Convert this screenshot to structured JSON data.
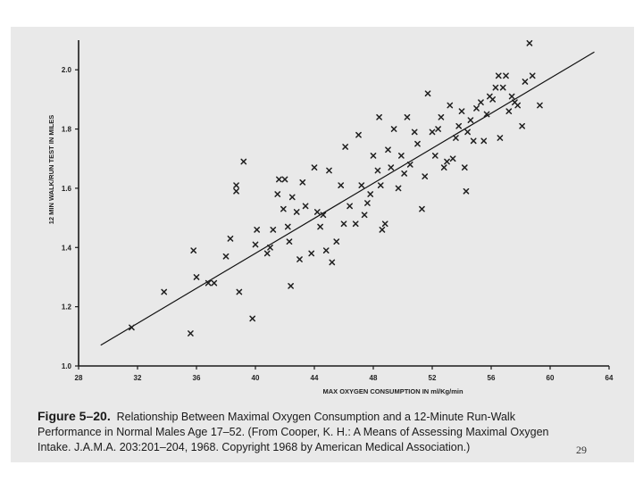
{
  "chart_data": {
    "type": "scatter",
    "title": "",
    "xlabel": "MAX OXYGEN CONSUMPTION IN ml/Kg/min",
    "ylabel": "12 MIN WALK/RUN TEST IN MILES",
    "xlim": [
      28,
      64
    ],
    "ylim": [
      1.0,
      2.1
    ],
    "x_ticks": [
      "28",
      "32",
      "36",
      "40",
      "44",
      "48",
      "52",
      "56",
      "60",
      "64"
    ],
    "y_ticks": [
      "1.0",
      "1.2",
      "1.4",
      "1.6",
      "1.8",
      "2.0"
    ],
    "grid": false,
    "marker": "x",
    "points": [
      [
        31.6,
        1.13
      ],
      [
        33.8,
        1.25
      ],
      [
        35.6,
        1.11
      ],
      [
        35.8,
        1.39
      ],
      [
        36.0,
        1.3
      ],
      [
        36.8,
        1.28
      ],
      [
        37.2,
        1.28
      ],
      [
        38.0,
        1.37
      ],
      [
        38.3,
        1.43
      ],
      [
        38.7,
        1.59
      ],
      [
        38.7,
        1.61
      ],
      [
        38.9,
        1.25
      ],
      [
        39.2,
        1.69
      ],
      [
        39.8,
        1.16
      ],
      [
        40.0,
        1.41
      ],
      [
        40.1,
        1.46
      ],
      [
        40.8,
        1.38
      ],
      [
        41.0,
        1.4
      ],
      [
        41.2,
        1.46
      ],
      [
        41.5,
        1.58
      ],
      [
        41.6,
        1.63
      ],
      [
        41.9,
        1.53
      ],
      [
        42.0,
        1.63
      ],
      [
        42.2,
        1.47
      ],
      [
        42.3,
        1.42
      ],
      [
        42.4,
        1.27
      ],
      [
        42.5,
        1.57
      ],
      [
        42.8,
        1.52
      ],
      [
        43.0,
        1.36
      ],
      [
        43.2,
        1.62
      ],
      [
        43.4,
        1.54
      ],
      [
        43.8,
        1.38
      ],
      [
        44.0,
        1.67
      ],
      [
        44.2,
        1.52
      ],
      [
        44.4,
        1.47
      ],
      [
        44.6,
        1.51
      ],
      [
        44.8,
        1.39
      ],
      [
        45.0,
        1.66
      ],
      [
        45.2,
        1.35
      ],
      [
        45.5,
        1.42
      ],
      [
        45.8,
        1.61
      ],
      [
        46.0,
        1.48
      ],
      [
        46.1,
        1.74
      ],
      [
        46.4,
        1.54
      ],
      [
        46.8,
        1.48
      ],
      [
        47.0,
        1.78
      ],
      [
        47.2,
        1.61
      ],
      [
        47.4,
        1.51
      ],
      [
        47.6,
        1.55
      ],
      [
        47.8,
        1.58
      ],
      [
        48.0,
        1.71
      ],
      [
        48.3,
        1.66
      ],
      [
        48.4,
        1.84
      ],
      [
        48.5,
        1.61
      ],
      [
        48.6,
        1.46
      ],
      [
        48.8,
        1.48
      ],
      [
        49.0,
        1.73
      ],
      [
        49.2,
        1.67
      ],
      [
        49.4,
        1.8
      ],
      [
        49.7,
        1.6
      ],
      [
        49.9,
        1.71
      ],
      [
        50.1,
        1.65
      ],
      [
        50.3,
        1.84
      ],
      [
        50.5,
        1.68
      ],
      [
        50.8,
        1.79
      ],
      [
        51.0,
        1.75
      ],
      [
        51.3,
        1.53
      ],
      [
        51.5,
        1.64
      ],
      [
        51.7,
        1.92
      ],
      [
        52.0,
        1.79
      ],
      [
        52.2,
        1.71
      ],
      [
        52.4,
        1.8
      ],
      [
        52.6,
        1.84
      ],
      [
        52.8,
        1.67
      ],
      [
        53.0,
        1.69
      ],
      [
        53.2,
        1.88
      ],
      [
        53.4,
        1.7
      ],
      [
        53.6,
        1.77
      ],
      [
        53.8,
        1.81
      ],
      [
        54.0,
        1.86
      ],
      [
        54.2,
        1.67
      ],
      [
        54.4,
        1.79
      ],
      [
        54.6,
        1.83
      ],
      [
        54.8,
        1.76
      ],
      [
        55.0,
        1.87
      ],
      [
        55.3,
        1.89
      ],
      [
        55.5,
        1.76
      ],
      [
        55.7,
        1.85
      ],
      [
        55.9,
        1.91
      ],
      [
        56.1,
        1.9
      ],
      [
        56.3,
        1.94
      ],
      [
        56.5,
        1.98
      ],
      [
        56.6,
        1.77
      ],
      [
        56.8,
        1.94
      ],
      [
        57.0,
        1.98
      ],
      [
        57.2,
        1.86
      ],
      [
        57.4,
        1.91
      ],
      [
        57.6,
        1.89
      ],
      [
        57.8,
        1.88
      ],
      [
        58.1,
        1.81
      ],
      [
        58.3,
        1.96
      ],
      [
        58.6,
        2.09
      ],
      [
        58.8,
        1.98
      ],
      [
        59.3,
        1.88
      ],
      [
        54.3,
        1.59
      ]
    ],
    "trendline": {
      "x": [
        29.5,
        63.0
      ],
      "y": [
        1.07,
        2.06
      ]
    }
  },
  "caption": {
    "figure_label": "Figure 5–20.",
    "line1_rest": "Relationship Between Maximal Oxygen Consumption and a 12-Minute Run-Walk",
    "line2": "Performance in Normal Males Age 17–52. (From Cooper, K. H.: A Means of Assessing Maximal Oxygen",
    "line3": "Intake. J.A.M.A. 203:201–204, 1968. Copyright 1968 by American Medical Association.)"
  },
  "page_number": "29"
}
